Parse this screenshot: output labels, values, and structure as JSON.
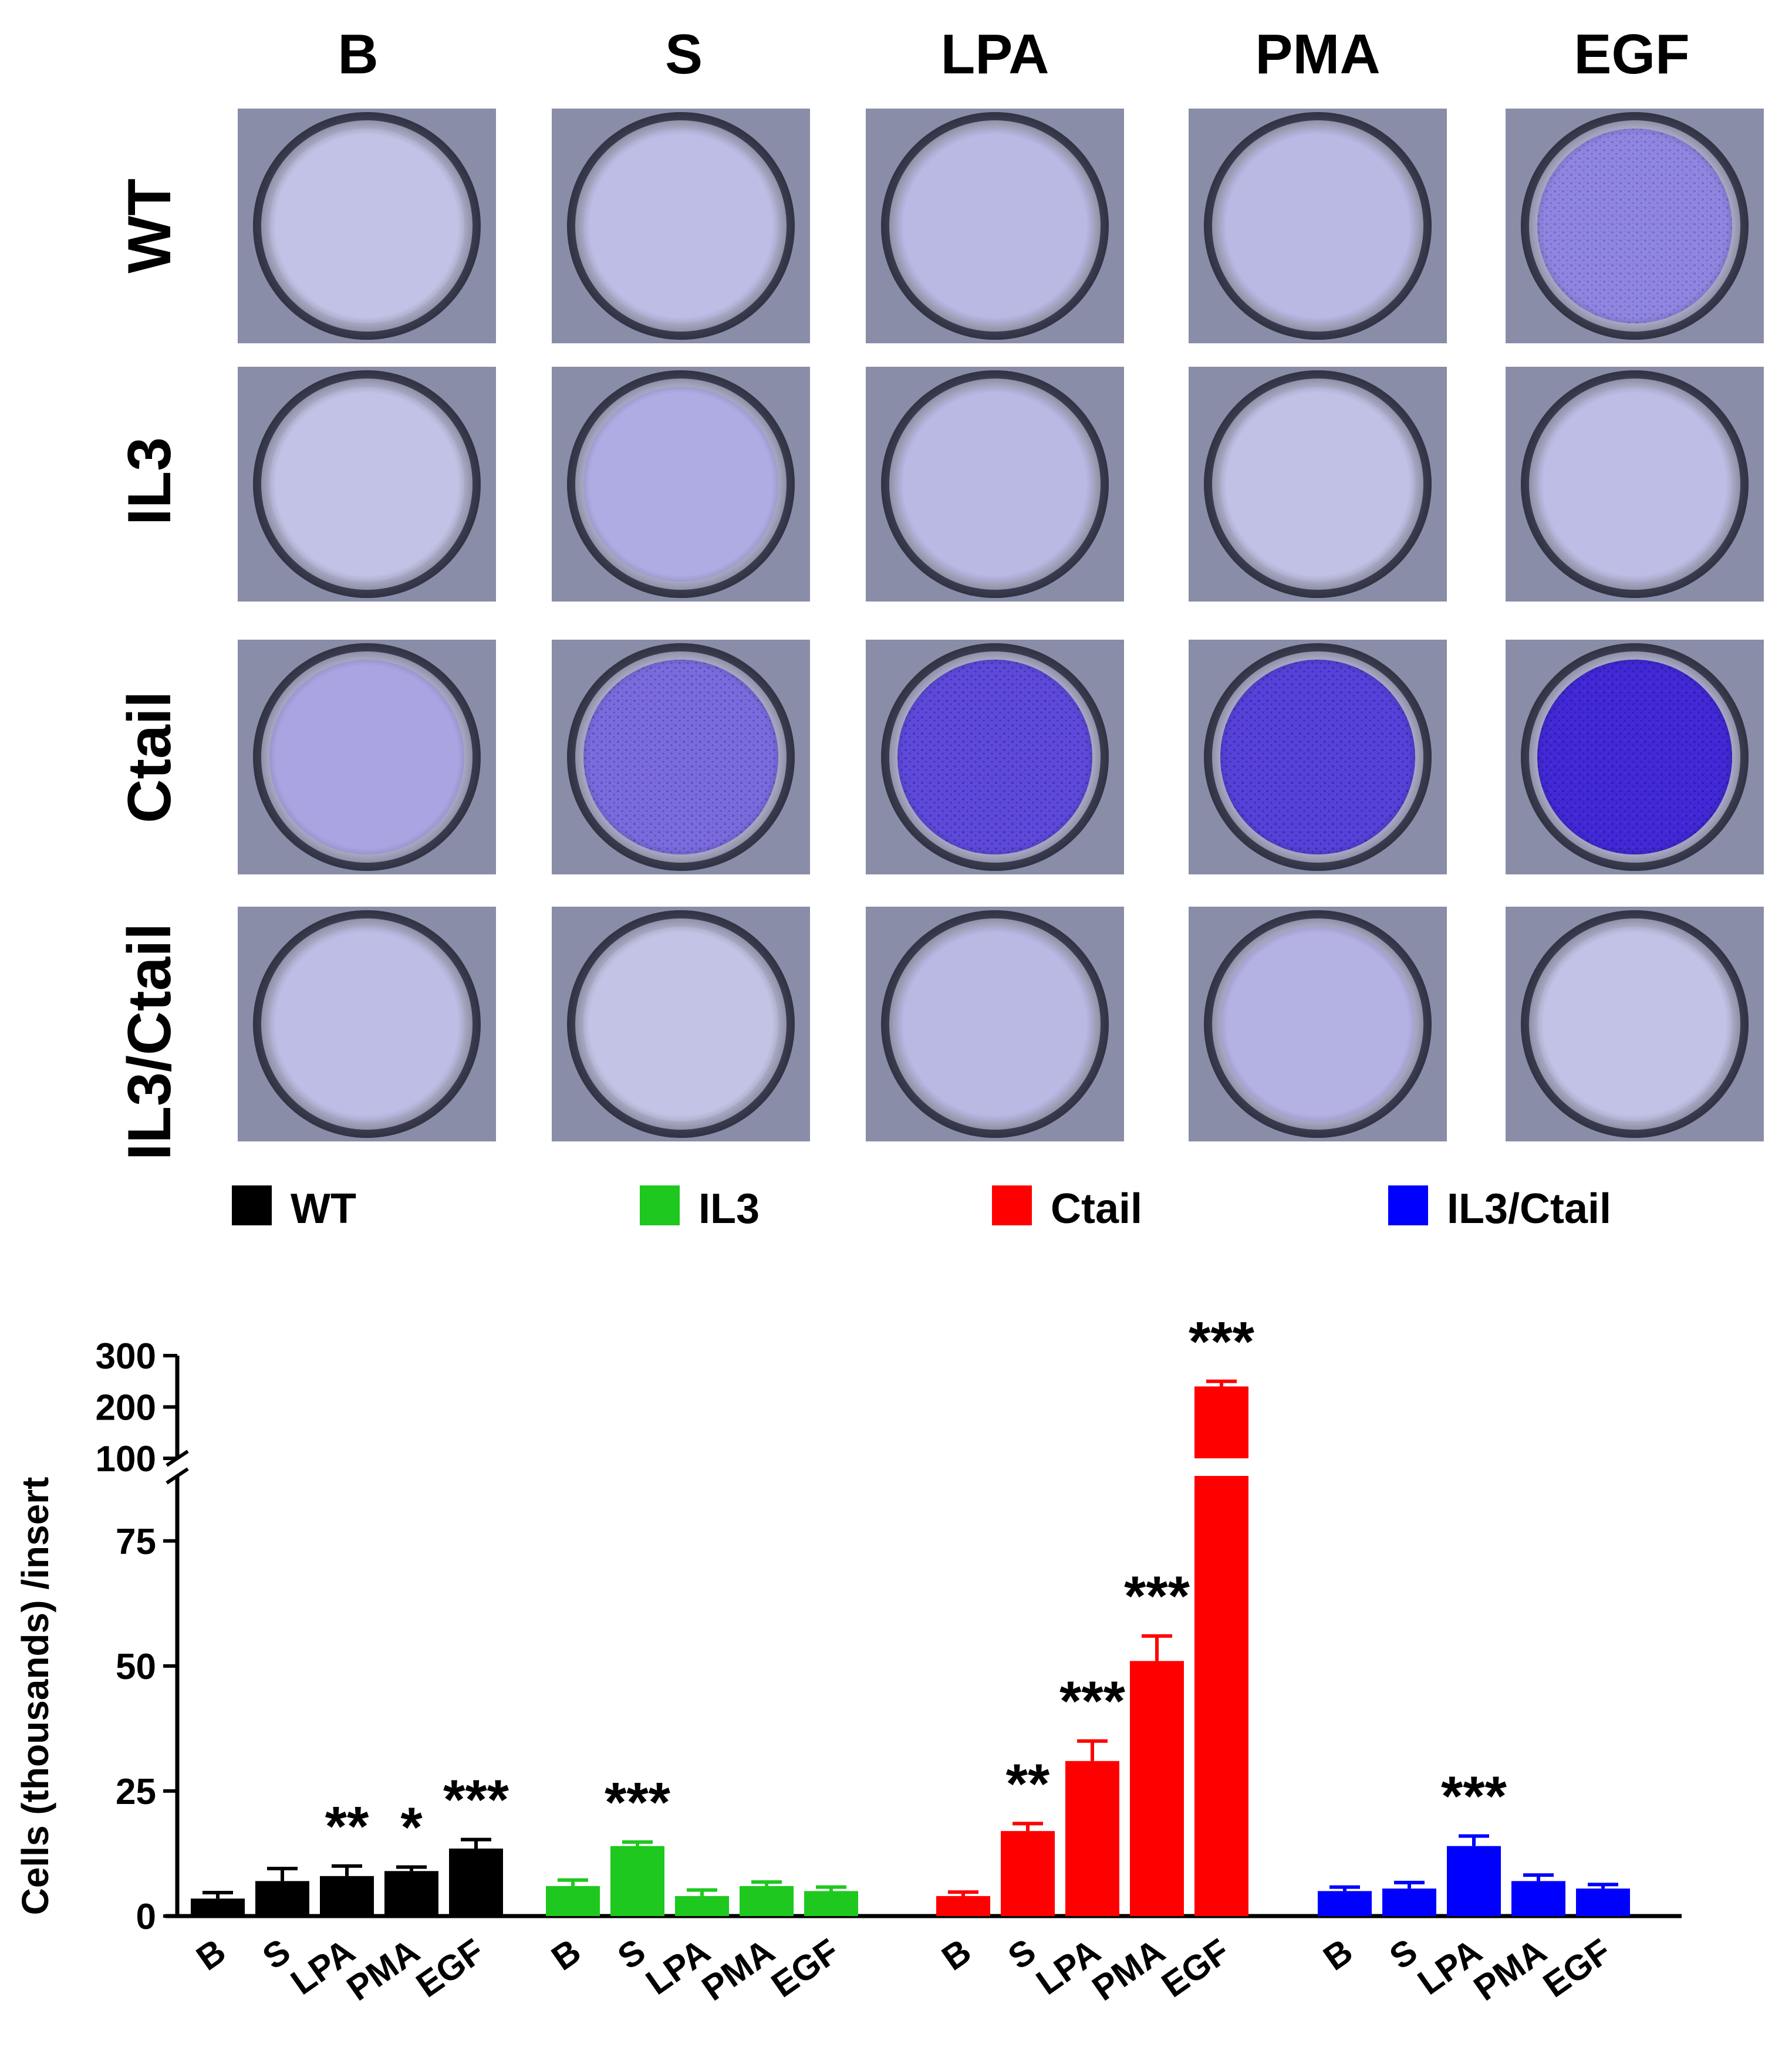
{
  "micrographs": {
    "column_labels": [
      "B",
      "S",
      "LPA",
      "PMA",
      "EGF"
    ],
    "row_labels": [
      "WT",
      "IL3",
      "Ctail",
      "IL3/Ctail"
    ],
    "stain_color": "#3a1fd6",
    "well_background_color": "#c9cbe6",
    "stain_density": [
      [
        0.05,
        0.08,
        0.1,
        0.1,
        0.4
      ],
      [
        0.05,
        0.18,
        0.1,
        0.06,
        0.08
      ],
      [
        0.22,
        0.55,
        0.75,
        0.8,
        0.97
      ],
      [
        0.08,
        0.04,
        0.1,
        0.15,
        0.05
      ]
    ]
  },
  "chart_data": {
    "type": "bar",
    "ylabel": "Cells (thousands) /insert",
    "yaxis": {
      "broken": true,
      "lower_range": [
        0,
        88
      ],
      "lower_ticks": [
        0,
        25,
        50,
        75
      ],
      "upper_range": [
        100,
        300
      ],
      "upper_ticks": [
        100,
        200,
        300
      ]
    },
    "group_categories": [
      "B",
      "S",
      "LPA",
      "PMA",
      "EGF"
    ],
    "series": [
      {
        "name": "WT",
        "color": "#000000",
        "values": [
          3.5,
          7,
          8,
          9,
          13.5
        ],
        "errors": [
          1.2,
          2.5,
          2,
          0.8,
          1.8
        ],
        "significance": [
          "",
          "",
          "**",
          "*",
          "***"
        ]
      },
      {
        "name": "IL3",
        "color": "#1ec81e",
        "values": [
          6,
          14,
          4,
          6,
          5
        ],
        "errors": [
          1.2,
          0.8,
          1.2,
          0.8,
          0.8
        ],
        "significance": [
          "",
          "***",
          "",
          "",
          ""
        ]
      },
      {
        "name": "Ctail",
        "color": "#ff0000",
        "values": [
          4,
          17,
          31,
          51,
          240
        ],
        "errors": [
          0.8,
          1.5,
          4,
          5,
          10
        ],
        "significance": [
          "",
          "**",
          "***",
          "***",
          "***"
        ]
      },
      {
        "name": "IL3/Ctail",
        "color": "#0000ff",
        "values": [
          5,
          5.5,
          14,
          7,
          5.5
        ],
        "errors": [
          0.8,
          1.2,
          2,
          1.2,
          0.8
        ],
        "significance": [
          "",
          "",
          "***",
          "",
          ""
        ]
      }
    ]
  }
}
